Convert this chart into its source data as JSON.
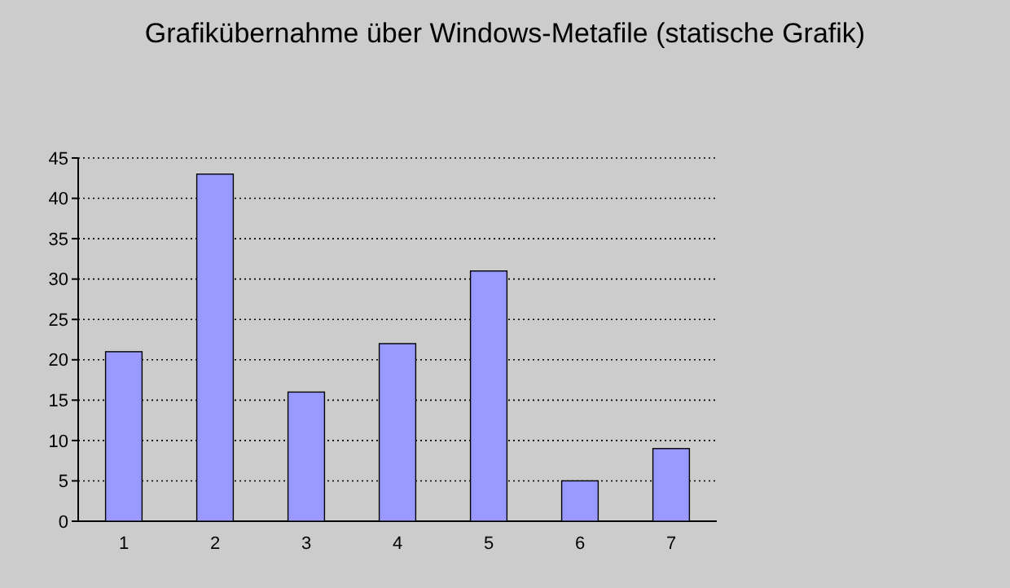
{
  "chart_data": {
    "type": "bar",
    "title": "Grafikübernahme über Windows-Metafile (statische Grafik)",
    "categories": [
      "1",
      "2",
      "3",
      "4",
      "5",
      "6",
      "7"
    ],
    "values": [
      21,
      43,
      16,
      22,
      31,
      5,
      9
    ],
    "color": "#9999ff",
    "ylim": [
      0,
      45
    ],
    "yticks": [
      0,
      5,
      10,
      15,
      20,
      25,
      30,
      35,
      40,
      45
    ],
    "grid": "y"
  }
}
